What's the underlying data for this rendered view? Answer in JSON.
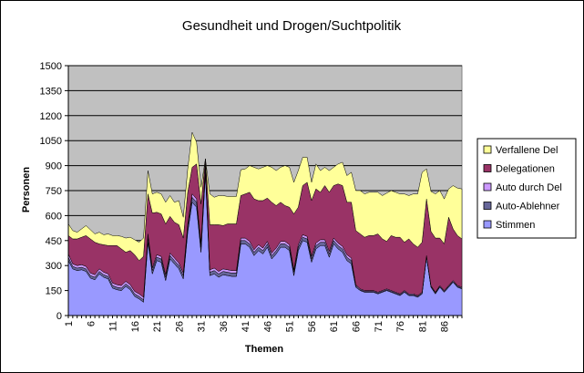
{
  "chart_data": {
    "type": "area",
    "stacked": true,
    "title": "Gesundheit und Drogen/Suchtpolitik",
    "xlabel": "Themen",
    "ylabel": "Personen",
    "ylim": [
      0,
      1500
    ],
    "y_ticks": [
      0,
      150,
      300,
      450,
      600,
      750,
      900,
      1050,
      1200,
      1350,
      1500
    ],
    "x_ticks": [
      1,
      6,
      11,
      16,
      21,
      26,
      31,
      36,
      41,
      46,
      51,
      56,
      61,
      66,
      71,
      76,
      81,
      86
    ],
    "x": [
      1,
      2,
      3,
      4,
      5,
      6,
      7,
      8,
      9,
      10,
      11,
      12,
      13,
      14,
      15,
      16,
      17,
      18,
      19,
      20,
      21,
      22,
      23,
      24,
      25,
      26,
      27,
      28,
      29,
      30,
      31,
      32,
      33,
      34,
      35,
      36,
      37,
      38,
      39,
      40,
      41,
      42,
      43,
      44,
      45,
      46,
      47,
      48,
      49,
      50,
      51,
      52,
      53,
      54,
      55,
      56,
      57,
      58,
      59,
      60,
      61,
      62,
      63,
      64,
      65,
      66,
      67,
      68,
      69,
      70,
      71,
      72,
      73,
      74,
      75,
      76,
      77,
      78,
      79,
      80,
      81,
      82,
      83,
      84,
      85,
      86,
      87,
      88,
      89,
      90
    ],
    "grid": true,
    "legend_position": "right",
    "plot_background": "#c0c0c0",
    "series": [
      {
        "name": "Stimmen",
        "color": "#9999ff",
        "values": [
          330,
          280,
          270,
          275,
          265,
          225,
          215,
          250,
          230,
          220,
          165,
          155,
          150,
          175,
          155,
          115,
          100,
          80,
          440,
          250,
          330,
          320,
          210,
          340,
          310,
          280,
          220,
          500,
          680,
          650,
          380,
          850,
          240,
          250,
          230,
          245,
          240,
          235,
          235,
          430,
          430,
          410,
          360,
          390,
          370,
          410,
          340,
          370,
          410,
          410,
          390,
          240,
          390,
          450,
          440,
          320,
          400,
          420,
          420,
          350,
          430,
          400,
          380,
          330,
          310,
          170,
          150,
          140,
          140,
          140,
          130,
          140,
          150,
          140,
          130,
          120,
          140,
          120,
          120,
          110,
          130,
          350,
          170,
          130,
          170,
          140,
          170,
          200,
          170,
          160
        ]
      },
      {
        "name": "Auto-Ablehner",
        "color": "#666699",
        "values": [
          20,
          15,
          15,
          15,
          15,
          15,
          15,
          15,
          15,
          15,
          15,
          15,
          15,
          15,
          15,
          15,
          15,
          15,
          30,
          20,
          20,
          20,
          20,
          20,
          20,
          20,
          20,
          30,
          30,
          30,
          30,
          40,
          20,
          20,
          20,
          20,
          20,
          20,
          20,
          20,
          20,
          20,
          20,
          20,
          20,
          20,
          20,
          20,
          20,
          20,
          20,
          20,
          20,
          20,
          20,
          20,
          20,
          20,
          20,
          20,
          20,
          20,
          20,
          20,
          20,
          10,
          5,
          5,
          5,
          5,
          5,
          5,
          5,
          5,
          5,
          5,
          5,
          5,
          5,
          5,
          5,
          5,
          5,
          5,
          5,
          5,
          5,
          5,
          5,
          5
        ]
      },
      {
        "name": "Auto durch Del",
        "color": "#cc99ff",
        "values": [
          20,
          15,
          15,
          15,
          15,
          15,
          15,
          15,
          15,
          15,
          15,
          15,
          15,
          15,
          15,
          15,
          15,
          15,
          20,
          15,
          15,
          15,
          15,
          15,
          15,
          15,
          15,
          20,
          20,
          20,
          20,
          20,
          15,
          15,
          15,
          15,
          15,
          15,
          15,
          15,
          15,
          15,
          15,
          15,
          15,
          15,
          15,
          15,
          15,
          15,
          15,
          15,
          15,
          15,
          15,
          15,
          15,
          15,
          15,
          15,
          15,
          15,
          15,
          15,
          15,
          5,
          5,
          5,
          5,
          5,
          5,
          5,
          5,
          5,
          5,
          5,
          5,
          5,
          5,
          5,
          5,
          5,
          5,
          5,
          5,
          5,
          5,
          5,
          5,
          5
        ]
      },
      {
        "name": "Delegationen",
        "color": "#993366",
        "values": [
          110,
          150,
          160,
          165,
          185,
          205,
          195,
          150,
          165,
          170,
          225,
          235,
          220,
          175,
          205,
          220,
          200,
          245,
          240,
          330,
          255,
          255,
          305,
          220,
          215,
          230,
          210,
          190,
          160,
          210,
          240,
          30,
          270,
          260,
          280,
          260,
          275,
          280,
          280,
          255,
          265,
          295,
          305,
          265,
          285,
          260,
          305,
          255,
          235,
          215,
          225,
          335,
          225,
          295,
          325,
          335,
          325,
          285,
          325,
          355,
          315,
          355,
          365,
          315,
          335,
          325,
          330,
          320,
          330,
          330,
          350,
          310,
          285,
          330,
          330,
          340,
          290,
          330,
          300,
          290,
          300,
          340,
          325,
          325,
          285,
          280,
          410,
          310,
          300,
          290
        ]
      },
      {
        "name": "Verfallene Del",
        "color": "#ffff99",
        "values": [
          70,
          50,
          40,
          50,
          60,
          55,
          50,
          70,
          60,
          70,
          60,
          60,
          75,
          85,
          80,
          90,
          110,
          110,
          140,
          115,
          120,
          120,
          130,
          125,
          120,
          145,
          125,
          140,
          210,
          130,
          100,
          0,
          185,
          165,
          175,
          180,
          165,
          165,
          165,
          155,
          150,
          160,
          190,
          190,
          200,
          195,
          210,
          210,
          210,
          240,
          240,
          190,
          220,
          170,
          150,
          110,
          150,
          130,
          110,
          130,
          110,
          120,
          140,
          160,
          180,
          240,
          260,
          260,
          260,
          260,
          250,
          260,
          290,
          270,
          270,
          260,
          290,
          260,
          300,
          320,
          420,
          180,
          240,
          265,
          285,
          270,
          170,
          260,
          285,
          300
        ]
      }
    ]
  }
}
